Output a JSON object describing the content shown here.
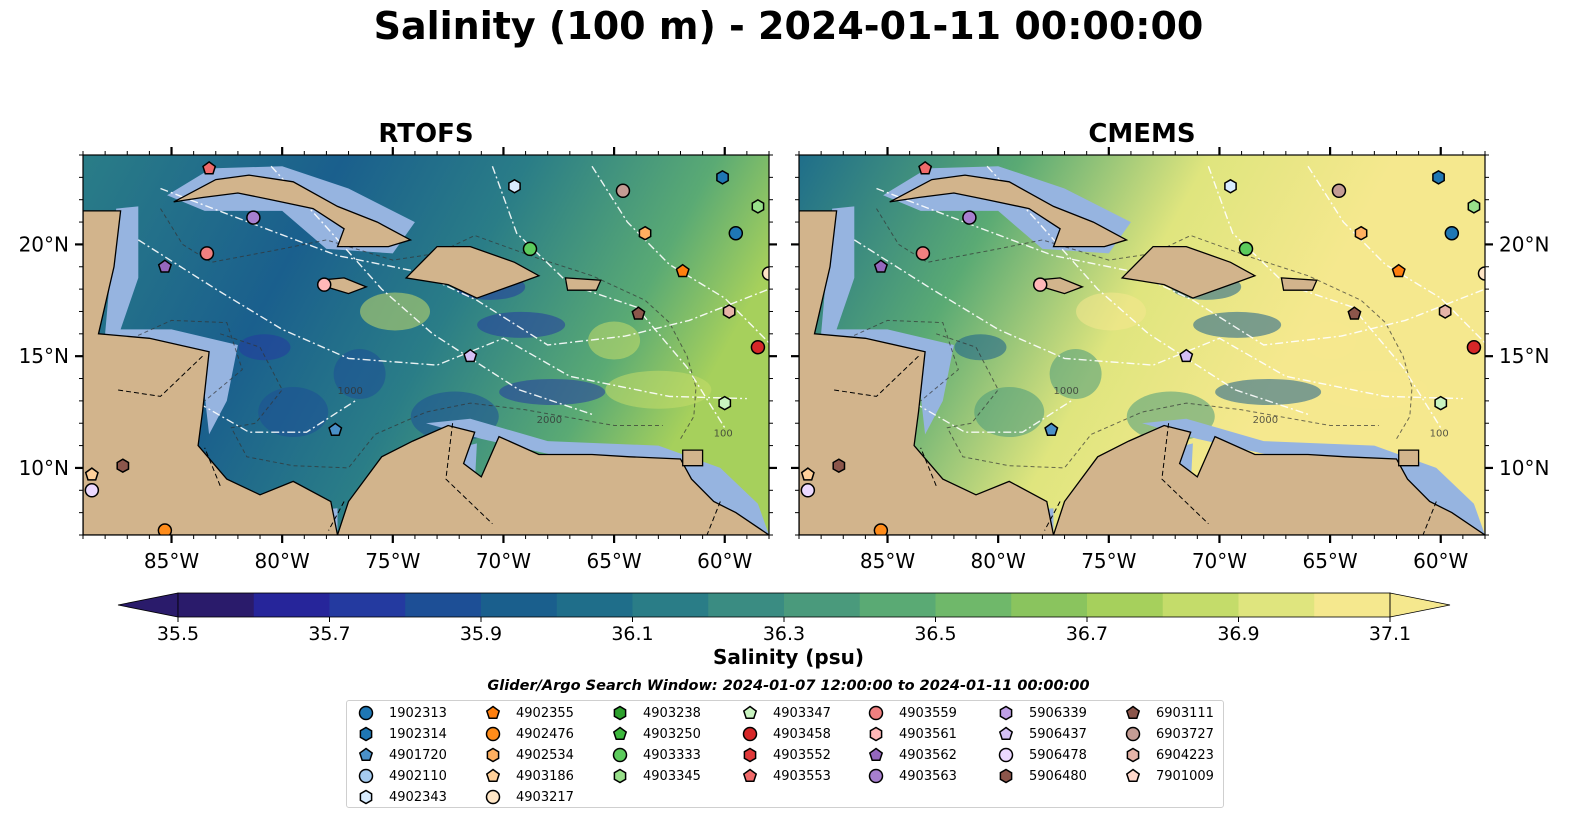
{
  "title": "Salinity (100 m) - 2024-01-11 00:00:00",
  "panels": [
    {
      "title": "RTOFS",
      "salinity_tone": "fresh"
    },
    {
      "title": "CMEMS",
      "salinity_tone": "salty"
    }
  ],
  "map": {
    "lon_ticks": [
      "85°W",
      "80°W",
      "75°W",
      "70°W",
      "65°W",
      "60°W"
    ],
    "lat_ticks": [
      "20°N",
      "15°N",
      "10°N"
    ],
    "lon_values": [
      -85,
      -80,
      -75,
      -70,
      -65,
      -60
    ],
    "lat_values": [
      20,
      15,
      10
    ],
    "lon_range": [
      -89,
      -58
    ],
    "lat_range": [
      7,
      24
    ],
    "contour_labels": [
      "1000",
      "2000",
      "100"
    ],
    "colors": {
      "land": "#d2b48c",
      "shelf": "#96b4e0",
      "coast": "#000000"
    }
  },
  "colorbar": {
    "title": "Salinity (psu)",
    "ticks": [
      "35.5",
      "35.7",
      "35.9",
      "36.1",
      "36.3",
      "36.5",
      "36.7",
      "36.9",
      "37.1"
    ],
    "range": [
      35.4,
      37.2
    ],
    "colors": [
      "#2a1b6b",
      "#26259a",
      "#243aa0",
      "#1d4f96",
      "#1a5f8d",
      "#1f6e8a",
      "#2a7d87",
      "#3a8c82",
      "#4a9a7c",
      "#5aaa74",
      "#6fb86a",
      "#8ac45e",
      "#a6d05c",
      "#c4dc6a",
      "#dfe57e",
      "#f5e88e"
    ]
  },
  "legend": {
    "caption": "Glider/Argo Search Window: 2024-01-07 12:00:00 to 2024-01-11 00:00:00",
    "columns": [
      [
        {
          "id": "1902313",
          "shape": "circle",
          "color": "#1f77b4"
        },
        {
          "id": "1902314",
          "shape": "hexagon",
          "color": "#1f77b4"
        },
        {
          "id": "4901720",
          "shape": "pentagon",
          "color": "#4a90c8"
        },
        {
          "id": "4902110",
          "shape": "circle",
          "color": "#a6cbef"
        },
        {
          "id": "4902343",
          "shape": "hexagon",
          "color": "#d8ecff"
        }
      ],
      [
        {
          "id": "4902355",
          "shape": "pentagon",
          "color": "#ff7f0e"
        },
        {
          "id": "4902476",
          "shape": "circle",
          "color": "#ff8c1a"
        },
        {
          "id": "4902534",
          "shape": "hexagon",
          "color": "#ffb060"
        },
        {
          "id": "4903186",
          "shape": "pentagon",
          "color": "#ffd09a"
        },
        {
          "id": "4903217",
          "shape": "circle",
          "color": "#ffe6c6"
        }
      ],
      [
        {
          "id": "4903238",
          "shape": "hexagon",
          "color": "#2ca02c"
        },
        {
          "id": "4903250",
          "shape": "pentagon",
          "color": "#3db83d"
        },
        {
          "id": "4903333",
          "shape": "circle",
          "color": "#5ccb5c"
        },
        {
          "id": "4903345",
          "shape": "hexagon",
          "color": "#98df8a"
        }
      ],
      [
        {
          "id": "4903347",
          "shape": "pentagon",
          "color": "#c9f4c0"
        },
        {
          "id": "4903458",
          "shape": "circle",
          "color": "#d62728"
        },
        {
          "id": "4903552",
          "shape": "hexagon",
          "color": "#e0393a"
        },
        {
          "id": "4903553",
          "shape": "pentagon",
          "color": "#f06a6a"
        }
      ],
      [
        {
          "id": "4903559",
          "shape": "circle",
          "color": "#f08080"
        },
        {
          "id": "4903561",
          "shape": "hexagon",
          "color": "#ffb8b8"
        },
        {
          "id": "4903562",
          "shape": "pentagon",
          "color": "#9467bd"
        },
        {
          "id": "4903563",
          "shape": "circle",
          "color": "#a77fcf"
        }
      ],
      [
        {
          "id": "5906339",
          "shape": "hexagon",
          "color": "#bfa0e6"
        },
        {
          "id": "5906437",
          "shape": "pentagon",
          "color": "#d4bff5"
        },
        {
          "id": "5906478",
          "shape": "circle",
          "color": "#ecd9ff"
        },
        {
          "id": "5906480",
          "shape": "hexagon",
          "color": "#8c564b"
        }
      ],
      [
        {
          "id": "6903111",
          "shape": "pentagon",
          "color": "#8c564b"
        },
        {
          "id": "6903727",
          "shape": "circle",
          "color": "#c49c94"
        },
        {
          "id": "6904223",
          "shape": "hexagon",
          "color": "#e6b4a8"
        },
        {
          "id": "7901009",
          "shape": "pentagon",
          "color": "#ffd8cc"
        }
      ]
    ]
  },
  "floats": [
    {
      "lon": -83.3,
      "lat": 23.4,
      "shape": "pentagon",
      "color": "#f06a6a"
    },
    {
      "lon": -81.3,
      "lat": 21.2,
      "shape": "circle",
      "color": "#a77fcf"
    },
    {
      "lon": -83.4,
      "lat": 19.6,
      "shape": "circle",
      "color": "#f08080"
    },
    {
      "lon": -85.3,
      "lat": 19.0,
      "shape": "pentagon",
      "color": "#9467bd"
    },
    {
      "lon": -78.1,
      "lat": 18.2,
      "shape": "circle",
      "color": "#ffb8b8"
    },
    {
      "lon": -69.5,
      "lat": 22.6,
      "shape": "hexagon",
      "color": "#d8ecff"
    },
    {
      "lon": -68.8,
      "lat": 19.8,
      "shape": "circle",
      "color": "#5ccb5c"
    },
    {
      "lon": -64.6,
      "lat": 22.4,
      "shape": "circle",
      "color": "#c49c94"
    },
    {
      "lon": -63.6,
      "lat": 20.5,
      "shape": "hexagon",
      "color": "#ffb060"
    },
    {
      "lon": -60.1,
      "lat": 23.0,
      "shape": "hexagon",
      "color": "#1f77b4"
    },
    {
      "lon": -58.5,
      "lat": 21.7,
      "shape": "hexagon",
      "color": "#98df8a"
    },
    {
      "lon": -59.5,
      "lat": 20.5,
      "shape": "circle",
      "color": "#1f77b4"
    },
    {
      "lon": -58.0,
      "lat": 18.7,
      "shape": "circle",
      "color": "#ffe6c6"
    },
    {
      "lon": -61.9,
      "lat": 18.8,
      "shape": "pentagon",
      "color": "#ff7f0e"
    },
    {
      "lon": -63.9,
      "lat": 16.9,
      "shape": "pentagon",
      "color": "#8c564b"
    },
    {
      "lon": -59.8,
      "lat": 17.0,
      "shape": "hexagon",
      "color": "#e6b4a8"
    },
    {
      "lon": -58.5,
      "lat": 15.4,
      "shape": "circle",
      "color": "#d62728"
    },
    {
      "lon": -60.0,
      "lat": 12.9,
      "shape": "hexagon",
      "color": "#c9f4c0"
    },
    {
      "lon": -71.5,
      "lat": 15.0,
      "shape": "pentagon",
      "color": "#d4bff5"
    },
    {
      "lon": -77.6,
      "lat": 11.7,
      "shape": "pentagon",
      "color": "#4a90c8"
    },
    {
      "lon": -88.6,
      "lat": 9.7,
      "shape": "pentagon",
      "color": "#ffd09a"
    },
    {
      "lon": -87.2,
      "lat": 10.1,
      "shape": "hexagon",
      "color": "#8c564b"
    },
    {
      "lon": -88.6,
      "lat": 9.0,
      "shape": "circle",
      "color": "#ecd9ff"
    },
    {
      "lon": -85.3,
      "lat": 7.2,
      "shape": "circle",
      "color": "#ff8c1a"
    }
  ]
}
